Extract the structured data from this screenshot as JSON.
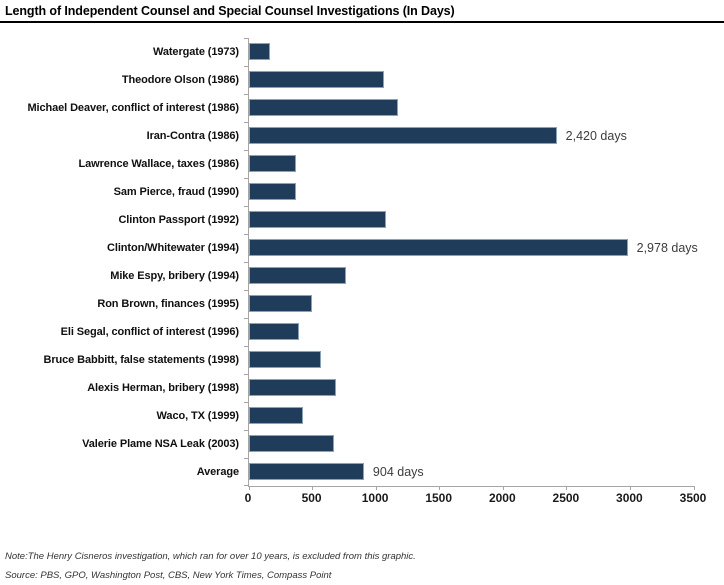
{
  "title": "Length of Independent Counsel and Special Counsel Investigations (In Days)",
  "note": "Note:The Henry Cisneros investigation, which ran for over 10 years, is excluded from this graphic.",
  "source": "Source: PBS, GPO, Washington Post, CBS, New York Times, Compass Point",
  "colors": {
    "bar_fill": "#1f3c5b",
    "bar_border": "#8aa2b5",
    "axis": "#a6a6a6",
    "title_rule": "#000000"
  },
  "chart_data": {
    "type": "bar",
    "orientation": "horizontal",
    "title": "Length of Independent Counsel and Special Counsel Investigations (In Days)",
    "categories": [
      "Watergate (1973)",
      "Theodore Olson (1986)",
      "Michael Deaver, conflict of interest (1986)",
      "Iran-Contra (1986)",
      "Lawrence Wallace, taxes (1986)",
      "Sam Pierce, fraud (1990)",
      "Clinton Passport (1992)",
      "Clinton/Whitewater (1994)",
      "Mike Espy, bribery (1994)",
      "Ron Brown, finances (1995)",
      "Eli Segal, conflict of interest (1996)",
      "Bruce Babbitt, false statements (1998)",
      "Alexis Herman, bribery (1998)",
      "Waco, TX (1999)",
      "Valerie Plame NSA Leak (2003)",
      "Average"
    ],
    "values": [
      165,
      1060,
      1170,
      2420,
      370,
      370,
      1080,
      2978,
      760,
      495,
      390,
      565,
      685,
      425,
      670,
      904
    ],
    "bar_labels": [
      "",
      "",
      "",
      "2,420 days",
      "",
      "",
      "",
      "2,978 days",
      "",
      "",
      "",
      "",
      "",
      "",
      "",
      "904 days"
    ],
    "xlabel": "",
    "ylabel": "",
    "xlim": [
      0,
      3500
    ],
    "xticks": [
      0,
      500,
      1000,
      1500,
      2000,
      2500,
      3000,
      3500
    ],
    "grid": false,
    "legend": false,
    "annotations": [
      "Note:The Henry Cisneros investigation, which ran for over 10 years, is excluded from this graphic.",
      "Source: PBS, GPO, Washington Post, CBS, New York Times, Compass Point"
    ]
  }
}
